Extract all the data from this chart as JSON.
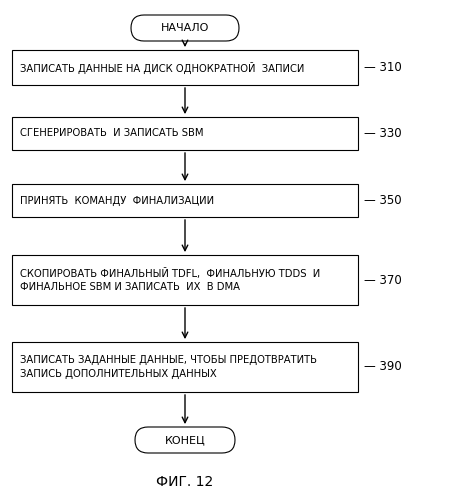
{
  "title": "ФИГ. 12",
  "background_color": "#ffffff",
  "start_label": "НАЧАЛО",
  "end_label": "КОНЕЦ",
  "boxes": [
    {
      "text": "ЗАПИСАТЬ ДАННЫЕ НА ДИСК ОДНОКРАТНОЙ  ЗАПИСИ",
      "label": "310"
    },
    {
      "text": "СГЕНЕРИРОВАТЬ  И ЗАПИСАТЬ SBM",
      "label": "330"
    },
    {
      "text": "ПРИНЯТЬ  КОМАНДУ  ФИНАЛИЗАЦИИ",
      "label": "350"
    },
    {
      "text": "СКОПИРОВАТЬ ФИНАЛЬНЫЙ TDFL,  ФИНАЛЬНУЮ TDDS  И\nФИНАЛЬНОЕ SBM И ЗАПИСАТЬ  ИХ  В DMA",
      "label": "370"
    },
    {
      "text": "ЗАПИСАТЬ ЗАДАННЫЕ ДАННЫЕ, ЧТОБЫ ПРЕДОТВРАТИТЬ\nЗАПИСЬ ДОПОЛНИТЕЛЬНЫХ ДАННЫХ",
      "label": "390"
    }
  ],
  "font_family": "DejaVu Sans",
  "box_edge_color": "#000000",
  "box_face_color": "#ffffff",
  "arrow_color": "#000000",
  "text_color": "#000000",
  "label_color": "#000000",
  "fig_width": 4.5,
  "fig_height": 5.0,
  "dpi": 100
}
